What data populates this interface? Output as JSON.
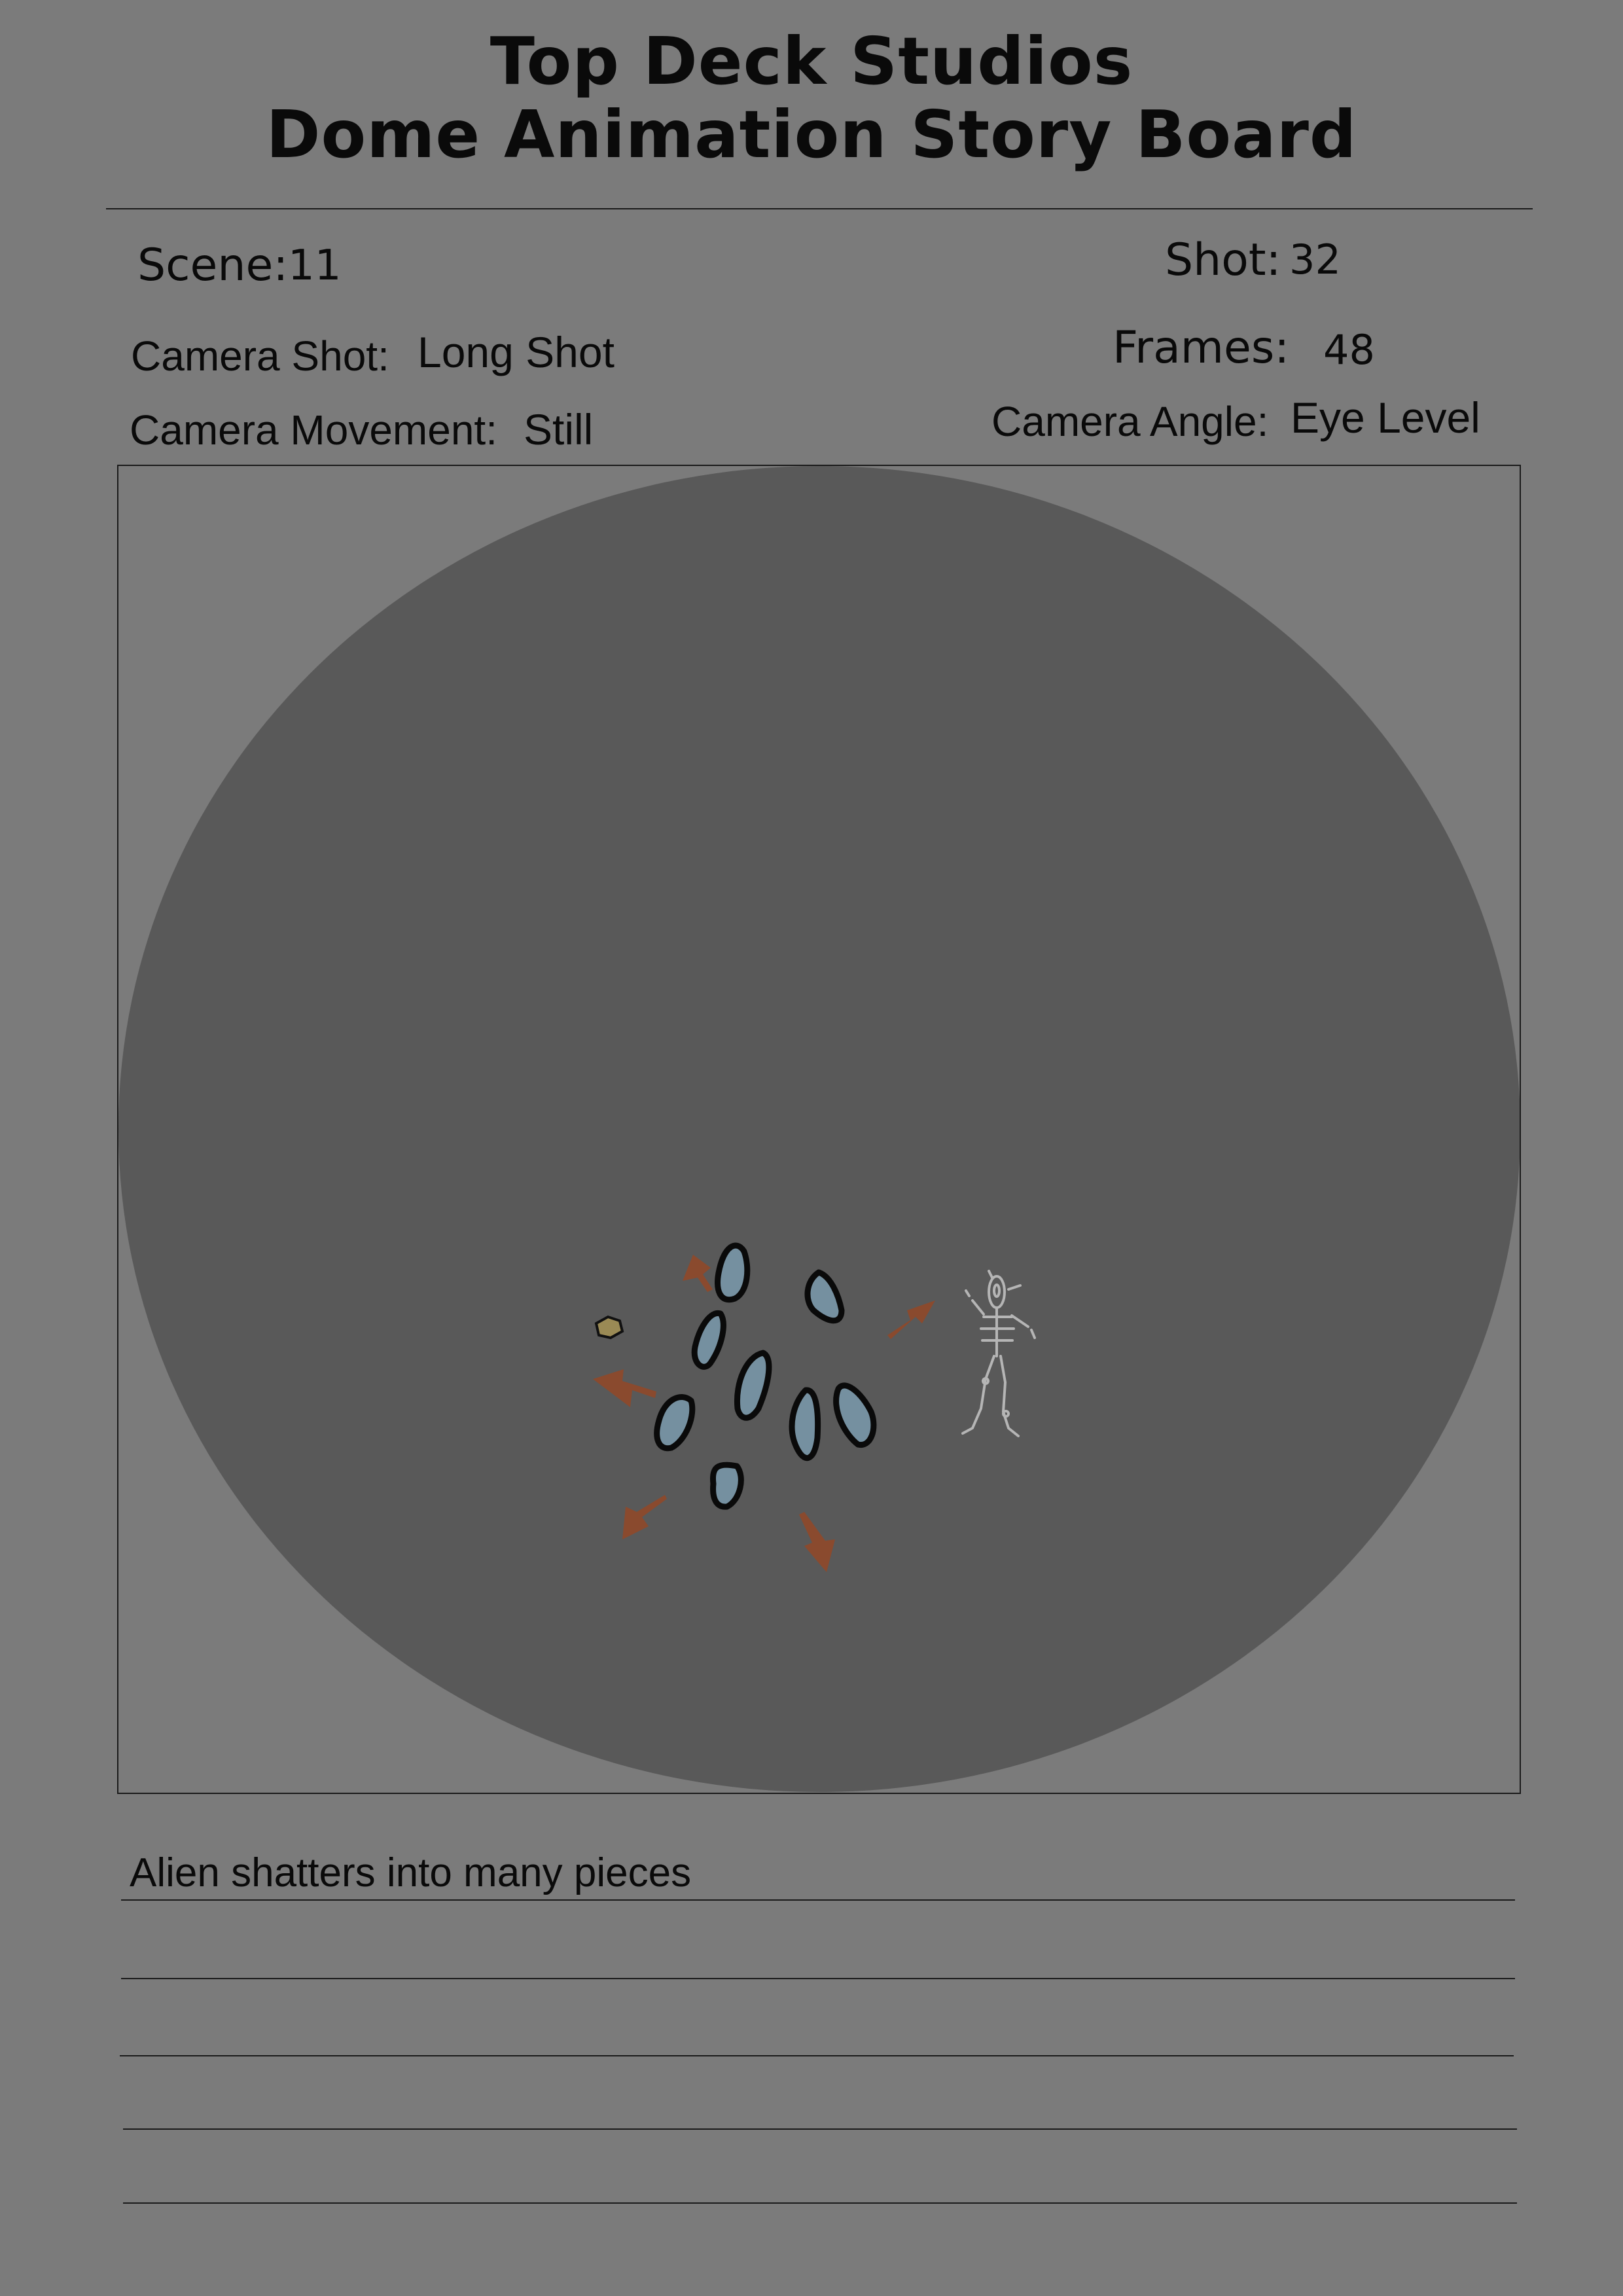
{
  "header": {
    "studio": "Top Deck Studios",
    "board_title": "Dome Animation Story Board"
  },
  "fields": {
    "scene": {
      "label": "Scene:",
      "value": "11"
    },
    "shot": {
      "label": "Shot:",
      "value": "32"
    },
    "camera_shot": {
      "label": "Camera Shot:",
      "value": "Long Shot"
    },
    "frames": {
      "label": "Frames:",
      "value": "48"
    },
    "camera_movement": {
      "label": "Camera Movement:",
      "value": "Still"
    },
    "camera_angle": {
      "label": "Camera Angle:",
      "value": "Eye Level"
    }
  },
  "panel": {
    "dome_color": "#595959",
    "shard_fill": "#7590a0",
    "shard_stroke": "#0a0a0a",
    "arrow_color": "#8a4a2e",
    "skeleton_color": "#b5b5b5",
    "icons": [
      "alien-shard-icon",
      "debris-arrow-icon",
      "skeleton-figure-icon",
      "small-rock-icon"
    ]
  },
  "notes": {
    "lines": [
      "Alien shatters into many pieces",
      "",
      "",
      "",
      ""
    ]
  }
}
